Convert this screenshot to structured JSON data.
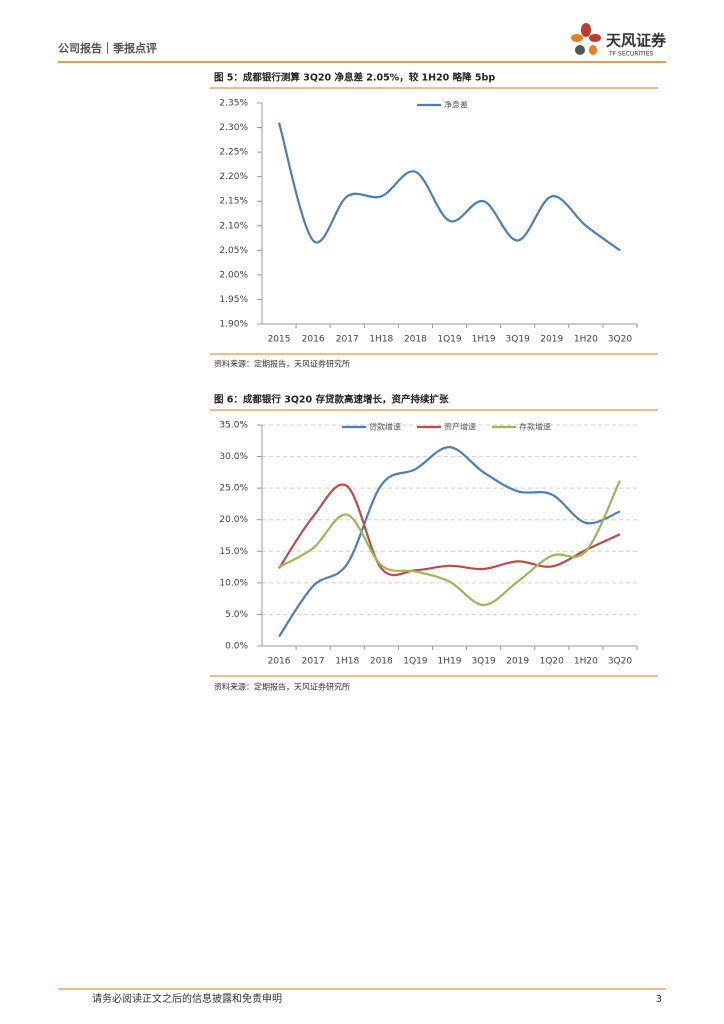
{
  "header": {
    "title": "公司报告｜季报点评",
    "logo": "天风证券",
    "logo_sub": "TF SECURITIES"
  },
  "chart_data": [
    {
      "type": "line",
      "title": "图 5：成都银行测算 3Q20 净息差 2.05%，较 1H20 略降 5bp",
      "categories": [
        "2015",
        "2016",
        "2017",
        "1H18",
        "2018",
        "1Q19",
        "1H19",
        "3Q19",
        "2019",
        "1H20",
        "3Q20"
      ],
      "series": [
        {
          "name": "净息差",
          "color": "#4a7ebb",
          "values": [
            2.31,
            2.07,
            2.16,
            2.16,
            2.21,
            2.11,
            2.15,
            2.07,
            2.16,
            2.1,
            2.05
          ]
        }
      ],
      "ylim": [
        1.9,
        2.35
      ],
      "yticks": [
        {
          "value": 1.9,
          "label": "1.90%"
        },
        {
          "value": 1.95,
          "label": "1.95%"
        },
        {
          "value": 2.0,
          "label": "2.00%"
        },
        {
          "value": 2.05,
          "label": "2.05%"
        },
        {
          "value": 2.1,
          "label": "2.10%"
        },
        {
          "value": 2.15,
          "label": "2.15%"
        },
        {
          "value": 2.2,
          "label": "2.20%"
        },
        {
          "value": 2.25,
          "label": "2.25%"
        },
        {
          "value": 2.3,
          "label": "2.30%"
        },
        {
          "value": 2.35,
          "label": "2.35%"
        }
      ],
      "grid": false,
      "legend": "top",
      "source": "资料来源：定期报告，天风证券研究所"
    },
    {
      "type": "line",
      "title": "图 6：成都银行 3Q20 存贷款高速增长，资产持续扩张",
      "categories": [
        "2016",
        "2017",
        "1H18",
        "2018",
        "1Q19",
        "1H19",
        "3Q19",
        "2019",
        "1Q20",
        "1H20",
        "3Q20"
      ],
      "series": [
        {
          "name": "贷款增速",
          "color": "#4a7ebb",
          "values": [
            1.5,
            9.5,
            13,
            25.5,
            28,
            31.5,
            27.5,
            24.5,
            24,
            19.5,
            21.3
          ]
        },
        {
          "name": "资产增速",
          "color": "#be4b48",
          "values": [
            12.3,
            20.5,
            25.3,
            12.3,
            12,
            12.7,
            12.2,
            13.4,
            12.6,
            15.2,
            17.7
          ]
        },
        {
          "name": "存款增速",
          "color": "#98b954",
          "values": [
            12.5,
            15.5,
            20.8,
            12.8,
            11.8,
            10.2,
            6.5,
            10.2,
            14.3,
            15,
            26.2
          ]
        }
      ],
      "ylim": [
        0,
        35
      ],
      "yticks": [
        {
          "value": 0,
          "label": "0.0%"
        },
        {
          "value": 5,
          "label": "5.0%"
        },
        {
          "value": 10,
          "label": "10.0%"
        },
        {
          "value": 15,
          "label": "15.0%"
        },
        {
          "value": 20,
          "label": "20.0%"
        },
        {
          "value": 25,
          "label": "25.0%"
        },
        {
          "value": 30,
          "label": "30.0%"
        },
        {
          "value": 35,
          "label": "35.0%"
        }
      ],
      "grid": true,
      "legend": "top",
      "source": "资料来源：定期报告，天风证券研究所"
    }
  ],
  "footer": {
    "disclaimer": "请务必阅读正文之后的信息披露和免责申明",
    "page": 3
  }
}
